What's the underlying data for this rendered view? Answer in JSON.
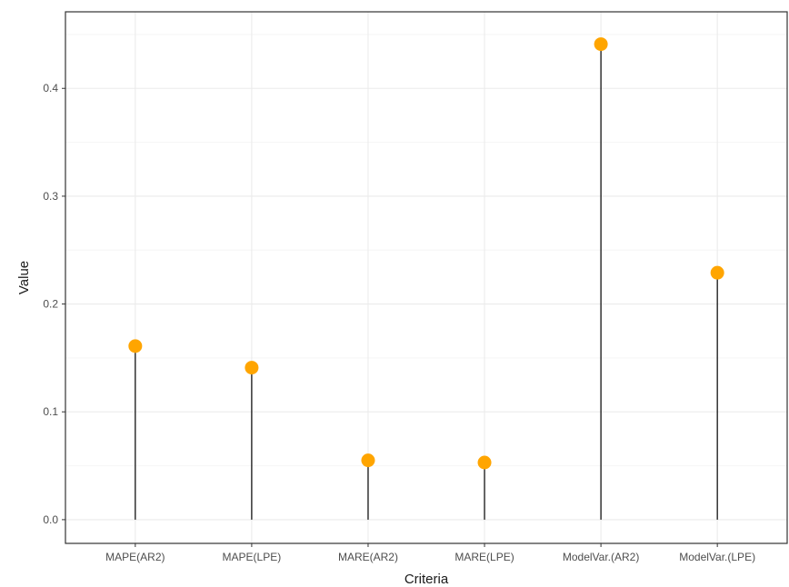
{
  "chart_data": {
    "type": "lollipop",
    "categories": [
      "MAPE(AR2)",
      "MAPE(LPE)",
      "MARE(AR2)",
      "MARE(LPE)",
      "ModelVar.(AR2)",
      "ModelVar.(LPE)"
    ],
    "values": [
      0.161,
      0.141,
      0.055,
      0.053,
      0.441,
      0.229
    ],
    "xlabel": "Criteria",
    "ylabel": "Value",
    "ylim": [
      -0.022,
      0.471
    ],
    "yticks": [
      0.0,
      0.1,
      0.2,
      0.3,
      0.4
    ],
    "ytick_labels": [
      "0.0",
      "0.1",
      "0.2",
      "0.3",
      "0.4"
    ],
    "grid": true,
    "colors": {
      "point": "#FFA500",
      "stem": "#000000",
      "grid_major": "#ebebeb",
      "grid_minor": "#f5f5f5",
      "panel_border": "#333333"
    }
  }
}
